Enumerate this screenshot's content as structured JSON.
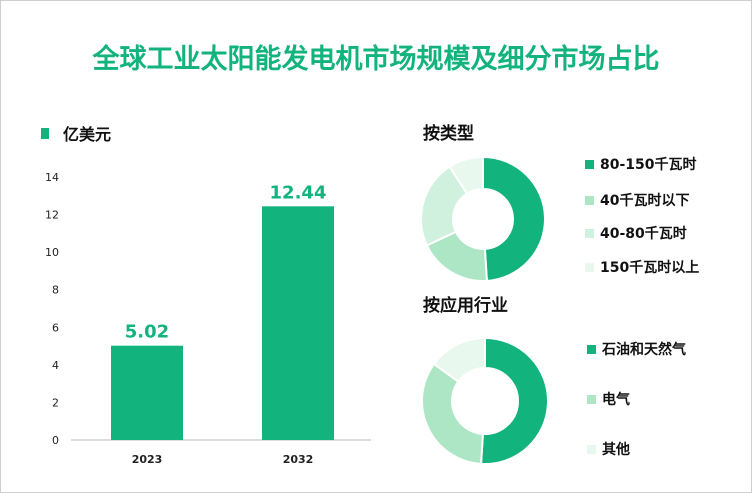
{
  "title": "全球工业太阳能发电机市场规模及细分市场占比",
  "chart_data": [
    {
      "type": "bar",
      "legend": "亿美元",
      "categories": [
        "2023",
        "2032"
      ],
      "values": [
        5.02,
        12.44
      ],
      "ylim": [
        0,
        14
      ],
      "yticks": [
        0,
        2,
        4,
        6,
        8,
        10,
        12,
        14
      ],
      "color": "#13b37e",
      "grid": false
    },
    {
      "type": "pie",
      "donut": true,
      "title": "按类型",
      "labels": [
        "80-150千瓦时",
        "40千瓦时以下",
        "40-80千瓦时",
        "150千瓦时以上"
      ],
      "values": [
        49,
        19,
        23,
        9
      ],
      "colors": [
        "#13b37e",
        "#ade6c4",
        "#d1f1df",
        "#e8f8ef"
      ]
    },
    {
      "type": "pie",
      "donut": true,
      "title": "按应用行业",
      "labels": [
        "石油和天然气",
        "电气",
        "其他"
      ],
      "values": [
        51,
        34,
        15
      ],
      "colors": [
        "#13b37e",
        "#ade6c4",
        "#e8f8ef"
      ]
    }
  ]
}
